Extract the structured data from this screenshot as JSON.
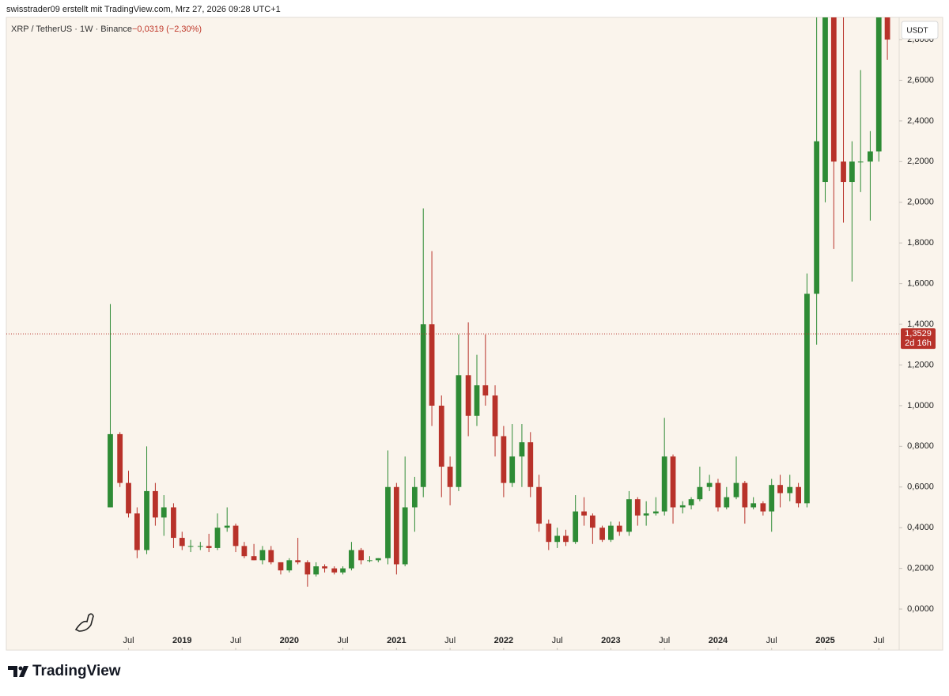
{
  "chart_data": {
    "type": "candlestick",
    "attribution": "swisstrader09 erstellt mit TradingView.com, Mrz 27, 2026 09:28 UTC+1",
    "title": "XRP / TetherUS · 1W · Binance",
    "change": "−0,0319 (−2,30%)",
    "currency": "USDT",
    "last_price": {
      "value": 1.3529,
      "label": "1,3529"
    },
    "countdown": "2d 16h",
    "brand": "TradingView",
    "up_color": "#2e8b35",
    "down_color": "#b8322a",
    "xlim": [
      2017.36,
      2025.69
    ],
    "xticks": [
      {
        "value": 2018.5,
        "label": "Jul"
      },
      {
        "value": 2019,
        "label": "2019"
      },
      {
        "value": 2019.5,
        "label": "Jul"
      },
      {
        "value": 2020,
        "label": "2020"
      },
      {
        "value": 2020.5,
        "label": "Jul"
      },
      {
        "value": 2021,
        "label": "2021"
      },
      {
        "value": 2021.5,
        "label": "Jul"
      },
      {
        "value": 2022,
        "label": "2022"
      },
      {
        "value": 2022.5,
        "label": "Jul"
      },
      {
        "value": 2023,
        "label": "2023"
      },
      {
        "value": 2023.5,
        "label": "Jul"
      },
      {
        "value": 2024,
        "label": "2024"
      },
      {
        "value": 2024.5,
        "label": "Jul"
      },
      {
        "value": 2025,
        "label": "2025"
      },
      {
        "value": 2025.5,
        "label": "Jul"
      }
    ],
    "ylim": [
      -0.202,
      2.909
    ],
    "yticks": [
      {
        "value": 0,
        "label": "0,0000"
      },
      {
        "value": 0.2,
        "label": "0,2000"
      },
      {
        "value": 0.4,
        "label": "0,4000"
      },
      {
        "value": 0.6,
        "label": "0,6000"
      },
      {
        "value": 0.8,
        "label": "0,8000"
      },
      {
        "value": 1.0,
        "label": "1,0000"
      },
      {
        "value": 1.2,
        "label": "1,2000"
      },
      {
        "value": 1.4,
        "label": "1,4000"
      },
      {
        "value": 1.6,
        "label": "1,6000"
      },
      {
        "value": 1.8,
        "label": "1,8000"
      },
      {
        "value": 2.0,
        "label": "2,0000"
      },
      {
        "value": 2.2,
        "label": "2,2000"
      },
      {
        "value": 2.4,
        "label": "2,4000"
      },
      {
        "value": 2.6,
        "label": "2,6000"
      },
      {
        "value": 2.8,
        "label": "2,8000"
      }
    ],
    "x": [
      2018.33,
      2018.42,
      2018.5,
      2018.58,
      2018.67,
      2018.75,
      2018.83,
      2018.92,
      2019.0,
      2019.08,
      2019.17,
      2019.25,
      2019.33,
      2019.42,
      2019.5,
      2019.58,
      2019.67,
      2019.75,
      2019.83,
      2019.92,
      2020.0,
      2020.08,
      2020.17,
      2020.25,
      2020.33,
      2020.42,
      2020.5,
      2020.58,
      2020.67,
      2020.75,
      2020.83,
      2020.92,
      2021.0,
      2021.08,
      2021.17,
      2021.25,
      2021.33,
      2021.42,
      2021.5,
      2021.58,
      2021.67,
      2021.75,
      2021.83,
      2021.92,
      2022.0,
      2022.08,
      2022.17,
      2022.25,
      2022.33,
      2022.42,
      2022.5,
      2022.58,
      2022.67,
      2022.75,
      2022.83,
      2022.92,
      2023.0,
      2023.08,
      2023.17,
      2023.25,
      2023.33,
      2023.42,
      2023.5,
      2023.58,
      2023.67,
      2023.75,
      2023.83,
      2023.92,
      2024.0,
      2024.08,
      2024.17,
      2024.25,
      2024.33,
      2024.42,
      2024.5,
      2024.58,
      2024.67,
      2024.75,
      2024.83,
      2024.92,
      2025.0,
      2025.08,
      2025.17,
      2025.25,
      2025.33,
      2025.42,
      2025.5,
      2025.58
    ],
    "open": [
      0.5,
      0.86,
      0.62,
      0.47,
      0.29,
      0.58,
      0.45,
      0.5,
      0.35,
      0.31,
      0.31,
      0.31,
      0.3,
      0.4,
      0.41,
      0.31,
      0.26,
      0.24,
      0.29,
      0.23,
      0.19,
      0.24,
      0.23,
      0.17,
      0.21,
      0.2,
      0.18,
      0.2,
      0.29,
      0.24,
      0.24,
      0.25,
      0.6,
      0.22,
      0.5,
      0.6,
      1.4,
      1.0,
      0.7,
      0.6,
      1.15,
      0.95,
      1.1,
      1.05,
      0.85,
      0.62,
      0.75,
      0.82,
      0.6,
      0.42,
      0.33,
      0.36,
      0.33,
      0.48,
      0.46,
      0.4,
      0.34,
      0.41,
      0.38,
      0.54,
      0.46,
      0.47,
      0.48,
      0.75,
      0.5,
      0.51,
      0.54,
      0.6,
      0.62,
      0.5,
      0.55,
      0.62,
      0.5,
      0.52,
      0.48,
      0.61,
      0.57,
      0.6,
      0.52,
      1.55,
      2.1,
      3.05,
      2.2,
      2.1,
      2.2,
      2.2,
      2.25,
      3.0
    ],
    "high": [
      1.5,
      0.87,
      0.68,
      0.5,
      0.8,
      0.62,
      0.56,
      0.52,
      0.38,
      0.34,
      0.33,
      0.37,
      0.47,
      0.5,
      0.42,
      0.33,
      0.32,
      0.31,
      0.31,
      0.23,
      0.25,
      0.35,
      0.24,
      0.23,
      0.22,
      0.21,
      0.21,
      0.33,
      0.3,
      0.26,
      0.25,
      0.78,
      0.62,
      0.75,
      0.65,
      1.97,
      1.76,
      1.05,
      0.75,
      1.35,
      1.41,
      1.25,
      1.35,
      1.1,
      0.9,
      0.91,
      0.91,
      0.87,
      0.66,
      0.44,
      0.4,
      0.39,
      0.56,
      0.55,
      0.47,
      0.41,
      0.43,
      0.43,
      0.58,
      0.55,
      0.53,
      0.55,
      0.94,
      0.76,
      0.53,
      0.55,
      0.7,
      0.66,
      0.64,
      0.6,
      0.75,
      0.63,
      0.55,
      0.53,
      0.64,
      0.66,
      0.66,
      0.62,
      1.65,
      2.91,
      3.4,
      3.1,
      3.0,
      2.3,
      2.65,
      2.35,
      3.65,
      3.3
    ],
    "low": [
      0.5,
      0.6,
      0.45,
      0.25,
      0.27,
      0.41,
      0.36,
      0.3,
      0.29,
      0.28,
      0.29,
      0.28,
      0.29,
      0.38,
      0.28,
      0.25,
      0.24,
      0.22,
      0.22,
      0.17,
      0.18,
      0.22,
      0.11,
      0.16,
      0.18,
      0.17,
      0.17,
      0.19,
      0.22,
      0.23,
      0.23,
      0.22,
      0.17,
      0.21,
      0.38,
      0.55,
      0.9,
      0.55,
      0.51,
      0.58,
      0.85,
      0.9,
      1.0,
      0.75,
      0.55,
      0.6,
      0.6,
      0.55,
      0.38,
      0.29,
      0.3,
      0.31,
      0.32,
      0.41,
      0.32,
      0.33,
      0.33,
      0.36,
      0.36,
      0.41,
      0.41,
      0.46,
      0.46,
      0.42,
      0.47,
      0.49,
      0.53,
      0.58,
      0.48,
      0.49,
      0.54,
      0.42,
      0.49,
      0.46,
      0.38,
      0.5,
      0.53,
      0.5,
      0.5,
      1.3,
      2.0,
      1.77,
      1.9,
      1.61,
      2.05,
      1.91,
      2.2,
      2.7
    ],
    "close": [
      0.86,
      0.62,
      0.47,
      0.29,
      0.58,
      0.45,
      0.5,
      0.35,
      0.31,
      0.31,
      0.31,
      0.3,
      0.4,
      0.41,
      0.31,
      0.26,
      0.24,
      0.29,
      0.23,
      0.19,
      0.24,
      0.23,
      0.17,
      0.21,
      0.2,
      0.18,
      0.2,
      0.29,
      0.24,
      0.24,
      0.25,
      0.6,
      0.22,
      0.5,
      0.6,
      1.4,
      1.0,
      0.7,
      0.6,
      1.15,
      0.95,
      1.1,
      1.05,
      0.85,
      0.62,
      0.75,
      0.82,
      0.6,
      0.42,
      0.33,
      0.36,
      0.33,
      0.48,
      0.46,
      0.4,
      0.34,
      0.41,
      0.38,
      0.54,
      0.46,
      0.47,
      0.48,
      0.75,
      0.5,
      0.51,
      0.54,
      0.6,
      0.62,
      0.5,
      0.55,
      0.62,
      0.5,
      0.52,
      0.48,
      0.61,
      0.57,
      0.6,
      0.52,
      1.55,
      2.3,
      3.05,
      2.2,
      2.1,
      2.2,
      2.2,
      2.25,
      3.0,
      2.8
    ]
  }
}
